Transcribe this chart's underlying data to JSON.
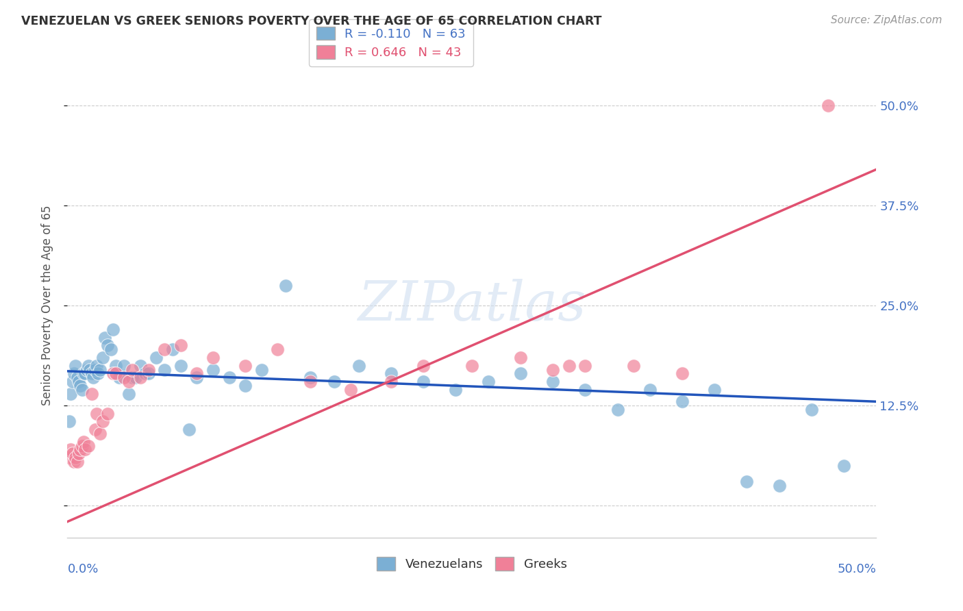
{
  "title": "VENEZUELAN VS GREEK SENIORS POVERTY OVER THE AGE OF 65 CORRELATION CHART",
  "source": "Source: ZipAtlas.com",
  "ylabel": "Seniors Poverty Over the Age of 65",
  "watermark": "ZIPatlas",
  "venezuelan_color": "#7bafd4",
  "greek_color": "#f08098",
  "trend_venezuelan_color": "#2255bb",
  "trend_greek_color": "#e05070",
  "xlim": [
    0.0,
    0.5
  ],
  "ylim": [
    -0.04,
    0.54
  ],
  "yticks": [
    0.0,
    0.125,
    0.25,
    0.375,
    0.5
  ],
  "ytick_labels_right": [
    "",
    "12.5%",
    "25.0%",
    "37.5%",
    "50.0%"
  ],
  "background_color": "#ffffff",
  "grid_color": "#cccccc",
  "ven_trend_x0": 0.0,
  "ven_trend_y0": 0.168,
  "ven_trend_x1": 0.5,
  "ven_trend_y1": 0.13,
  "grk_trend_x0": 0.0,
  "grk_trend_y0": -0.02,
  "grk_trend_x1": 0.5,
  "grk_trend_y1": 0.42,
  "ven_x": [
    0.001,
    0.002,
    0.003,
    0.004,
    0.005,
    0.006,
    0.007,
    0.008,
    0.009,
    0.01,
    0.011,
    0.012,
    0.013,
    0.014,
    0.015,
    0.016,
    0.017,
    0.018,
    0.019,
    0.02,
    0.022,
    0.023,
    0.025,
    0.027,
    0.028,
    0.03,
    0.032,
    0.035,
    0.038,
    0.04,
    0.042,
    0.045,
    0.048,
    0.05,
    0.055,
    0.06,
    0.065,
    0.07,
    0.075,
    0.08,
    0.09,
    0.1,
    0.11,
    0.12,
    0.135,
    0.15,
    0.165,
    0.18,
    0.2,
    0.22,
    0.24,
    0.26,
    0.28,
    0.3,
    0.32,
    0.34,
    0.36,
    0.38,
    0.4,
    0.42,
    0.44,
    0.46,
    0.48
  ],
  "ven_y": [
    0.105,
    0.14,
    0.155,
    0.165,
    0.175,
    0.16,
    0.155,
    0.15,
    0.145,
    0.165,
    0.165,
    0.17,
    0.175,
    0.17,
    0.165,
    0.16,
    0.17,
    0.175,
    0.165,
    0.17,
    0.185,
    0.21,
    0.2,
    0.195,
    0.22,
    0.175,
    0.16,
    0.175,
    0.14,
    0.16,
    0.16,
    0.175,
    0.165,
    0.165,
    0.185,
    0.17,
    0.195,
    0.175,
    0.095,
    0.16,
    0.17,
    0.16,
    0.15,
    0.17,
    0.275,
    0.16,
    0.155,
    0.175,
    0.165,
    0.155,
    0.145,
    0.155,
    0.165,
    0.155,
    0.145,
    0.12,
    0.145,
    0.13,
    0.145,
    0.03,
    0.025,
    0.12,
    0.05
  ],
  "grk_x": [
    0.001,
    0.002,
    0.003,
    0.004,
    0.005,
    0.006,
    0.007,
    0.008,
    0.009,
    0.01,
    0.011,
    0.013,
    0.015,
    0.017,
    0.018,
    0.02,
    0.022,
    0.025,
    0.028,
    0.03,
    0.035,
    0.038,
    0.04,
    0.045,
    0.05,
    0.06,
    0.07,
    0.08,
    0.09,
    0.11,
    0.13,
    0.15,
    0.175,
    0.2,
    0.22,
    0.25,
    0.28,
    0.3,
    0.32,
    0.35,
    0.38,
    0.47,
    0.31
  ],
  "grk_y": [
    0.06,
    0.07,
    0.065,
    0.055,
    0.06,
    0.055,
    0.065,
    0.07,
    0.075,
    0.08,
    0.07,
    0.075,
    0.14,
    0.095,
    0.115,
    0.09,
    0.105,
    0.115,
    0.165,
    0.165,
    0.16,
    0.155,
    0.17,
    0.16,
    0.17,
    0.195,
    0.2,
    0.165,
    0.185,
    0.175,
    0.195,
    0.155,
    0.145,
    0.155,
    0.175,
    0.175,
    0.185,
    0.17,
    0.175,
    0.175,
    0.165,
    0.5,
    0.175
  ],
  "legend1_label": "R = -0.110   N = 63",
  "legend2_label": "R = 0.646   N = 43",
  "legend1_color": "#7bafd4",
  "legend2_color": "#f08098",
  "label_venezuelans": "Venezuelans",
  "label_greeks": "Greeks",
  "tick_label_color": "#4472c4",
  "title_color": "#333333",
  "source_color": "#999999"
}
